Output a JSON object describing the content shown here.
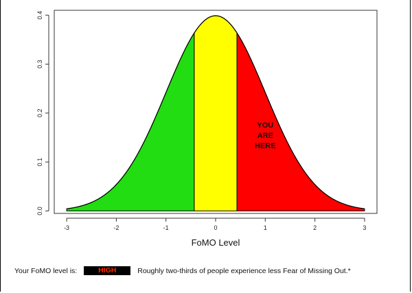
{
  "chart_data": {
    "type": "area",
    "distribution": "standard normal density",
    "x": [
      -3,
      -2.5,
      -2,
      -1.5,
      -1,
      -0.5,
      -0.43,
      0,
      0.43,
      0.5,
      1,
      1.5,
      2,
      2.5,
      3
    ],
    "y": [
      0.0044,
      0.0175,
      0.054,
      0.1295,
      0.242,
      0.3521,
      0.3636,
      0.3989,
      0.3636,
      0.3521,
      0.242,
      0.1295,
      0.054,
      0.0175,
      0.0044
    ],
    "regions": [
      {
        "from": -3,
        "to": -0.43,
        "color": "#22dd11"
      },
      {
        "from": -0.43,
        "to": 0.43,
        "color": "#ffff00"
      },
      {
        "from": 0.43,
        "to": 3,
        "color": "#ff0000"
      }
    ],
    "xlim": [
      -3.25,
      3.25
    ],
    "ylim": [
      -0.005,
      0.41
    ],
    "xticks": [
      "-3",
      "-2",
      "-1",
      "0",
      "1",
      "2",
      "3"
    ],
    "yticks": [
      "0.0",
      "0.1",
      "0.2",
      "0.3",
      "0.4"
    ],
    "xlabel": "FoMO Level",
    "ylabel": "",
    "grid": false,
    "annotation": {
      "lines": [
        "YOU",
        "ARE",
        "HERE"
      ],
      "x": 1.0,
      "y": 0.17
    }
  },
  "result": {
    "prefix": "Your FoMO level is:",
    "level": "HIGH",
    "description": "Roughly two-thirds of people experience less Fear of Missing Out.*"
  },
  "colors": {
    "low": "#22dd11",
    "mid": "#ffff00",
    "high": "#ff0000",
    "badge_bg": "#000000",
    "badge_text": "#ff2a00"
  }
}
